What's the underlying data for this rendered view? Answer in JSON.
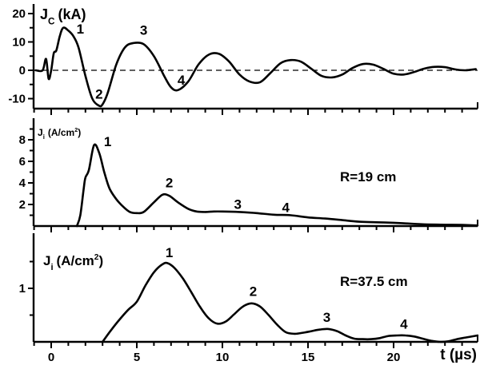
{
  "chart_data": [
    {
      "type": "line",
      "panel": "top",
      "ylabel": "J_C (kA)",
      "ylabel_main": "J",
      "ylabel_sub": "C",
      "ylabel_unit": "(kA)",
      "xlim": [
        -1,
        24.9
      ],
      "ylim": [
        -13.5,
        22
      ],
      "yticks": [
        "20",
        "10",
        "0",
        "-10"
      ],
      "zero_line": "dashed",
      "x": [
        -0.9,
        -0.5,
        -0.3,
        -0.15,
        0,
        0.15,
        0.3,
        0.5,
        0.7,
        1.0,
        1.3,
        1.6,
        2.0,
        2.4,
        2.8,
        3.0,
        3.3,
        3.8,
        4.3,
        4.8,
        5.4,
        6.0,
        6.6,
        7.0,
        7.4,
        8.0,
        8.6,
        9.2,
        9.8,
        10.4,
        11.0,
        11.6,
        12.2,
        12.8,
        13.4,
        14.0,
        14.6,
        15.2,
        15.8,
        16.4,
        17.0,
        17.6,
        18.2,
        18.8,
        19.4,
        20.0,
        20.6,
        21.2,
        21.8,
        22.4,
        23.0,
        23.6,
        24.2,
        24.8
      ],
      "values": [
        0,
        0,
        4,
        -3,
        0,
        6,
        7,
        12,
        15,
        14,
        12,
        8,
        -2,
        -10,
        -12.5,
        -12,
        -8,
        2,
        8,
        9.6,
        9.2,
        5,
        -2,
        -6,
        -7,
        -4,
        2,
        5.5,
        5.8,
        3,
        -1.5,
        -4,
        -4.2,
        -1,
        2.5,
        3.6,
        3,
        0.5,
        -2,
        -2.5,
        -1.5,
        0.8,
        2.2,
        2,
        0.5,
        -1.2,
        -1.5,
        -0.6,
        0.6,
        1.2,
        1.1,
        0.3,
        0,
        0.4
      ],
      "annotations": [
        {
          "text": "1",
          "x": 1.7,
          "y": 13
        },
        {
          "text": "2",
          "x": 2.8,
          "y": -10
        },
        {
          "text": "3",
          "x": 5.4,
          "y": 12.5
        },
        {
          "text": "4",
          "x": 7.6,
          "y": -5
        }
      ]
    },
    {
      "type": "line",
      "panel": "middle",
      "ylabel": "J_i (A/cm²)",
      "ylabel_main": "J",
      "ylabel_sub": "i",
      "ylabel_unit": "(A/cm",
      "ylabel_sup": "2",
      "ylabel_close": ")",
      "xlim": [
        -1,
        24.9
      ],
      "ylim": [
        0,
        9.9
      ],
      "yticks": [
        "8",
        "6",
        "4",
        "2"
      ],
      "legend_text": "R=19 cm",
      "x": [
        1.5,
        1.7,
        1.9,
        2.0,
        2.2,
        2.5,
        2.8,
        3.1,
        3.4,
        3.8,
        4.2,
        4.6,
        5.0,
        5.4,
        6.0,
        6.5,
        6.9,
        7.4,
        8.0,
        8.5,
        9.0,
        9.5,
        10.0,
        11.0,
        12.0,
        13.0,
        14.0,
        15.0,
        16.0,
        17.0,
        18.0,
        19.0,
        20.0,
        21.0,
        22.0,
        23.0,
        24.0,
        24.9
      ],
      "values": [
        0,
        1,
        3.5,
        4.5,
        5.2,
        7.5,
        6.8,
        5,
        3.5,
        2.5,
        1.8,
        1.3,
        1.2,
        1.3,
        2.2,
        2.9,
        2.8,
        2.2,
        1.6,
        1.35,
        1.3,
        1.35,
        1.35,
        1.3,
        1.2,
        1.05,
        1.0,
        0.8,
        0.7,
        0.55,
        0.4,
        0.35,
        0.3,
        0.22,
        0.15,
        0.12,
        0.1,
        0.05
      ],
      "annotations": [
        {
          "text": "1",
          "x": 3.3,
          "y": 7.4
        },
        {
          "text": "2",
          "x": 6.9,
          "y": 3.6
        },
        {
          "text": "3",
          "x": 10.9,
          "y": 1.6
        },
        {
          "text": "4",
          "x": 13.7,
          "y": 1.3
        }
      ]
    },
    {
      "type": "line",
      "panel": "bottom",
      "ylabel": "J_i (A/cm²)",
      "ylabel_main": "J",
      "ylabel_sub": "i",
      "ylabel_unit": "(A/cm",
      "ylabel_sup": "2",
      "ylabel_close": ")",
      "xlabel": "t (µs)",
      "xlim": [
        -1,
        24.9
      ],
      "ylim": [
        0,
        2.0
      ],
      "xticks": [
        "0",
        "5",
        "10",
        "15",
        "20"
      ],
      "yticks": [
        "1"
      ],
      "legend_text": "R=37.5 cm",
      "x": [
        3.0,
        3.5,
        4.0,
        4.5,
        5.0,
        5.5,
        6.0,
        6.5,
        6.8,
        7.2,
        7.7,
        8.2,
        8.7,
        9.2,
        9.7,
        10.2,
        10.7,
        11.2,
        11.7,
        12.2,
        12.7,
        13.2,
        13.7,
        14.2,
        14.7,
        15.2,
        15.7,
        16.2,
        16.7,
        17.2,
        17.7,
        18.2,
        18.7,
        19.2,
        19.7,
        20.2,
        20.7,
        21.2,
        21.7,
        22.2,
        22.7,
        23.2,
        23.7,
        24.2,
        24.9
      ],
      "values": [
        0,
        0.22,
        0.42,
        0.6,
        0.75,
        1.05,
        1.3,
        1.45,
        1.47,
        1.38,
        1.18,
        0.92,
        0.65,
        0.44,
        0.34,
        0.38,
        0.52,
        0.66,
        0.72,
        0.66,
        0.5,
        0.32,
        0.18,
        0.15,
        0.17,
        0.2,
        0.23,
        0.24,
        0.2,
        0.12,
        0.06,
        0.05,
        0.05,
        0.07,
        0.11,
        0.12,
        0.12,
        0.1,
        0.06,
        0.02,
        0.0,
        0.01,
        0.05,
        0.08,
        0.12
      ],
      "annotations": [
        {
          "text": "1",
          "x": 6.9,
          "y": 1.58
        },
        {
          "text": "2",
          "x": 11.8,
          "y": 0.86
        },
        {
          "text": "3",
          "x": 16.1,
          "y": 0.37
        },
        {
          "text": "4",
          "x": 20.6,
          "y": 0.25
        }
      ]
    }
  ]
}
